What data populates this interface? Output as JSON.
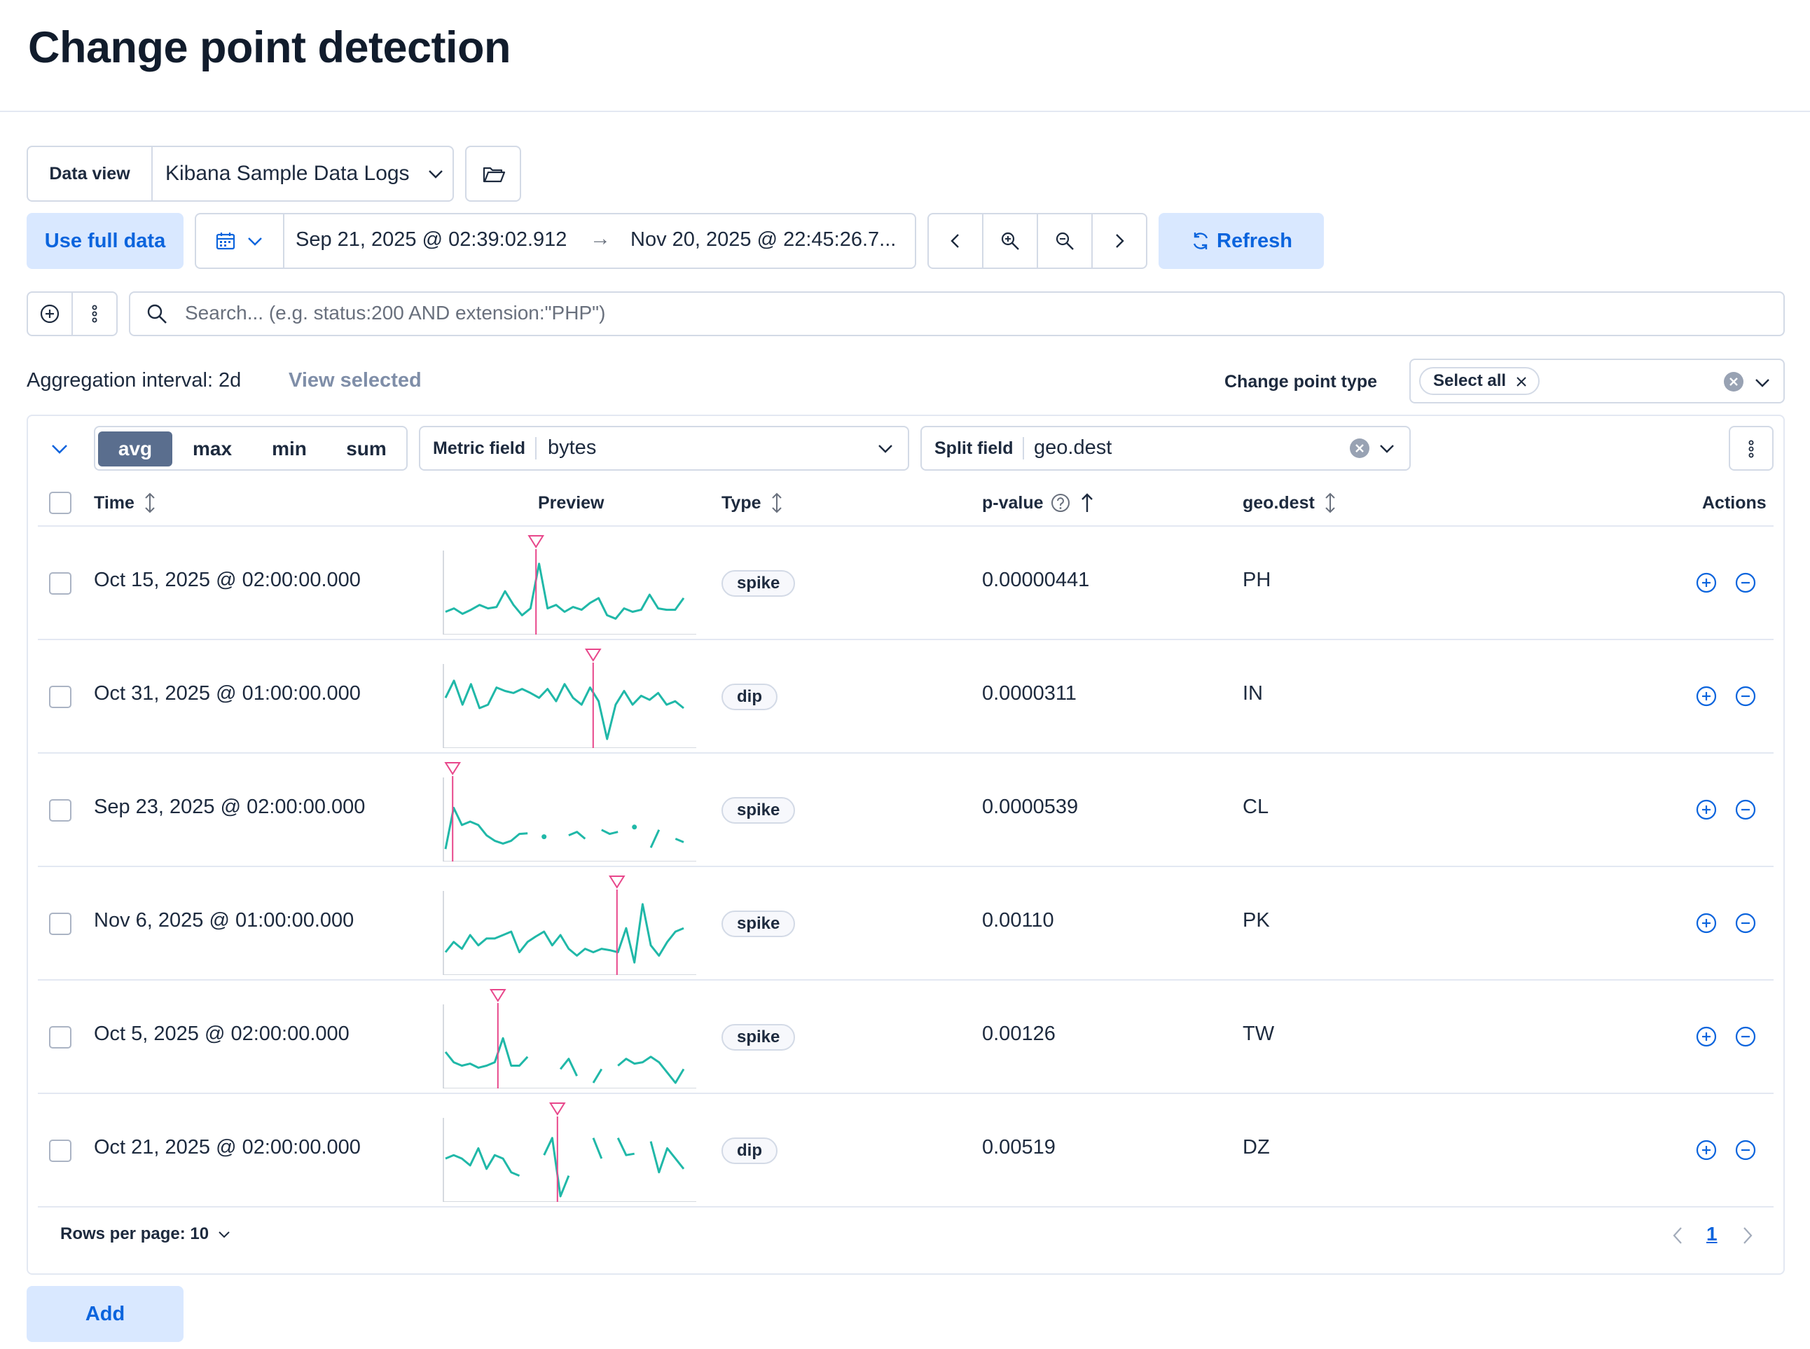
{
  "page": {
    "title": "Change point detection"
  },
  "data_view": {
    "label": "Data view",
    "value": "Kibana Sample Data Logs"
  },
  "toolbar": {
    "use_full_data": "Use full data",
    "start_date": "Sep 21, 2025 @ 02:39:02.912",
    "arrow": "→",
    "end_date": "Nov 20, 2025 @ 22:45:26.7...",
    "refresh": "Refresh"
  },
  "search": {
    "placeholder": "Search... (e.g. status:200 AND extension:\"PHP\")"
  },
  "aggregation": {
    "label": "Aggregation interval: 2d",
    "view_selected": "View selected"
  },
  "change_point_type": {
    "label": "Change point type",
    "chip": "Select all"
  },
  "functions": {
    "items": [
      "avg",
      "max",
      "min",
      "sum"
    ],
    "active": "avg"
  },
  "metric_field": {
    "label": "Metric field",
    "value": "bytes"
  },
  "split_field": {
    "label": "Split field",
    "value": "geo.dest"
  },
  "table": {
    "columns": {
      "time": "Time",
      "preview": "Preview",
      "type": "Type",
      "pvalue": "p-value",
      "geo": "geo.dest",
      "actions": "Actions"
    },
    "rows": [
      {
        "time": "Oct 15, 2025 @ 02:00:00.000",
        "type": "spike",
        "pvalue": "0.00000441",
        "geo": "PH",
        "marker": 0.38,
        "series": [
          0.25,
          0.3,
          0.22,
          0.28,
          0.35,
          0.3,
          0.32,
          0.55,
          0.35,
          0.2,
          0.3,
          0.95,
          0.3,
          0.35,
          0.25,
          0.32,
          0.28,
          0.38,
          0.45,
          0.2,
          0.15,
          0.3,
          0.25,
          0.28,
          0.5,
          0.3,
          0.28,
          0.28,
          0.45
        ]
      },
      {
        "time": "Oct 31, 2025 @ 01:00:00.000",
        "type": "dip",
        "pvalue": "0.0000311",
        "geo": "IN",
        "marker": 0.62,
        "series": [
          0.65,
          0.9,
          0.55,
          0.85,
          0.5,
          0.55,
          0.8,
          0.75,
          0.72,
          0.78,
          0.72,
          0.65,
          0.78,
          0.6,
          0.85,
          0.65,
          0.55,
          0.8,
          0.6,
          0.05,
          0.55,
          0.75,
          0.55,
          0.68,
          0.62,
          0.72,
          0.55,
          0.6,
          0.5
        ]
      },
      {
        "time": "Sep 23, 2025 @ 02:00:00.000",
        "type": "spike",
        "pvalue": "0.0000539",
        "geo": "CL",
        "marker": 0.03,
        "series": [
          0.1,
          0.7,
          0.45,
          0.5,
          0.45,
          0.3,
          0.22,
          0.18,
          0.22,
          0.32,
          0.33,
          null,
          0.28,
          null,
          null,
          0.3,
          0.35,
          0.25,
          null,
          0.38,
          0.32,
          0.35,
          null,
          0.42,
          null,
          0.12,
          0.38,
          null,
          0.25,
          0.2
        ]
      },
      {
        "time": "Nov 6, 2025 @ 01:00:00.000",
        "type": "spike",
        "pvalue": "0.00110",
        "geo": "PK",
        "marker": 0.72,
        "series": [
          0.25,
          0.4,
          0.3,
          0.5,
          0.35,
          0.45,
          0.45,
          0.5,
          0.55,
          0.25,
          0.4,
          0.48,
          0.55,
          0.35,
          0.5,
          0.3,
          0.2,
          0.3,
          0.25,
          0.3,
          0.28,
          0.25,
          0.6,
          0.1,
          0.95,
          0.35,
          0.2,
          0.4,
          0.55,
          0.6
        ]
      },
      {
        "time": "Oct 5, 2025 @ 02:00:00.000",
        "type": "spike",
        "pvalue": "0.00126",
        "geo": "TW",
        "marker": 0.22,
        "series": [
          0.45,
          0.3,
          0.25,
          0.28,
          0.22,
          0.25,
          0.3,
          0.65,
          0.25,
          0.25,
          0.38,
          null,
          null,
          null,
          0.2,
          0.35,
          0.1,
          null,
          0.0,
          0.2,
          null,
          0.25,
          0.35,
          0.28,
          0.3,
          0.38,
          0.3,
          0.15,
          0.0,
          0.2
        ]
      },
      {
        "time": "Oct 21, 2025 @ 02:00:00.000",
        "type": "dip",
        "pvalue": "0.00519",
        "geo": "DZ",
        "marker": 0.47,
        "series": [
          0.55,
          0.6,
          0.55,
          0.45,
          0.7,
          0.4,
          0.6,
          0.55,
          0.35,
          0.3,
          null,
          null,
          0.6,
          0.85,
          0.0,
          0.3,
          null,
          null,
          0.85,
          0.55,
          null,
          0.85,
          0.6,
          0.62,
          null,
          0.8,
          0.35,
          0.7,
          0.55,
          0.4
        ]
      }
    ]
  },
  "pagination": {
    "rows_per_page": "Rows per page: 10",
    "current": "1"
  },
  "add_button": "Add",
  "colors": {
    "accent": "#0b64dd",
    "series": "#20b8a8",
    "marker": "#e8478b",
    "active_fn": "#5a6e8e"
  }
}
